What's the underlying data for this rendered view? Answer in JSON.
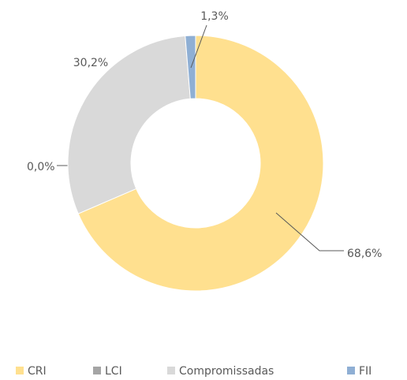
{
  "chart_data": {
    "type": "donut",
    "categories": [
      "CRI",
      "LCI",
      "Compromissadas",
      "FII"
    ],
    "values": [
      68.6,
      0.0,
      30.2,
      1.3
    ],
    "value_labels": [
      "68,6%",
      "0,0%",
      "30,2%",
      "1,3%"
    ],
    "colors": [
      "#FFE08F",
      "#A5A5A5",
      "#D9D9D9",
      "#8FAFD4"
    ],
    "legend": "bottom"
  }
}
